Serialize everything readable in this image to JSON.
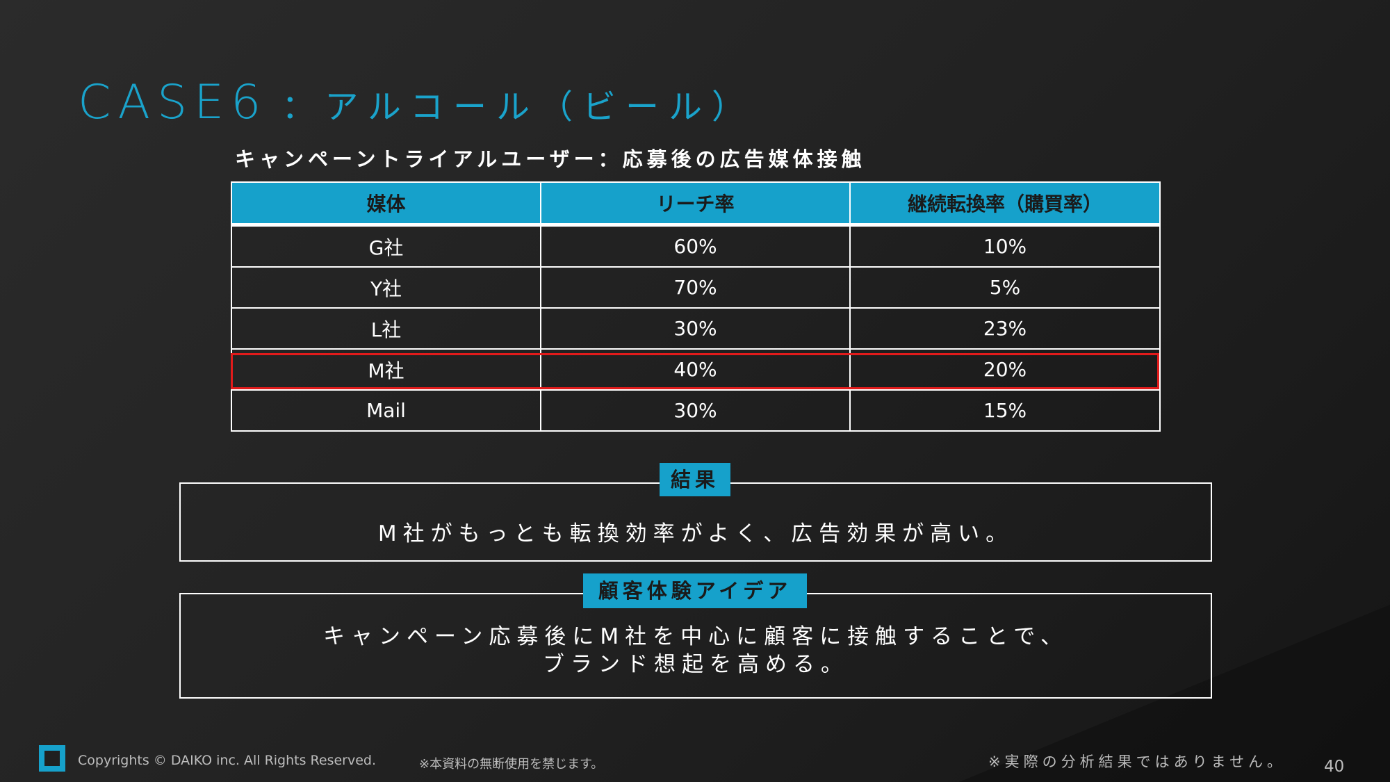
{
  "slide": {
    "title_case": "CASE6",
    "title_topic": "：アルコール（ビール）",
    "subtitle": "キャンペーントライアルユーザー：応募後の広告媒体接触"
  },
  "table": {
    "headers": [
      "媒体",
      "リーチ率",
      "継続転換率（購買率）"
    ],
    "rows": [
      {
        "media": "G社",
        "reach": "60%",
        "conversion": "10%"
      },
      {
        "media": "Y社",
        "reach": "70%",
        "conversion": "5%"
      },
      {
        "media": "L社",
        "reach": "30%",
        "conversion": "23%"
      },
      {
        "media": "M社",
        "reach": "40%",
        "conversion": "20%"
      },
      {
        "media": "Mail",
        "reach": "30%",
        "conversion": "15%"
      }
    ],
    "highlighted_row": "M社",
    "highlight_color": "#e21b1b"
  },
  "result": {
    "label": "結果",
    "text": "M社がもっとも転換効率がよく、広告効果が高い。"
  },
  "idea": {
    "label": "顧客体験アイデア",
    "line1": "キャンペーン応募後にM社を中心に顧客に接触することで、",
    "line2": "ブランド想起を高める。"
  },
  "footer": {
    "logo_icon": "daiko-square-logo",
    "copyright": "Copyrights © DAIKO inc. All Rights Reserved.",
    "notice": "※本資料の無断使用を禁じます。",
    "disclaimer": "※実際の分析結果ではありません。",
    "page_number": "40"
  },
  "colors": {
    "accent": "#16a1cb",
    "title": "#1aa3cb",
    "background": "#222222"
  }
}
